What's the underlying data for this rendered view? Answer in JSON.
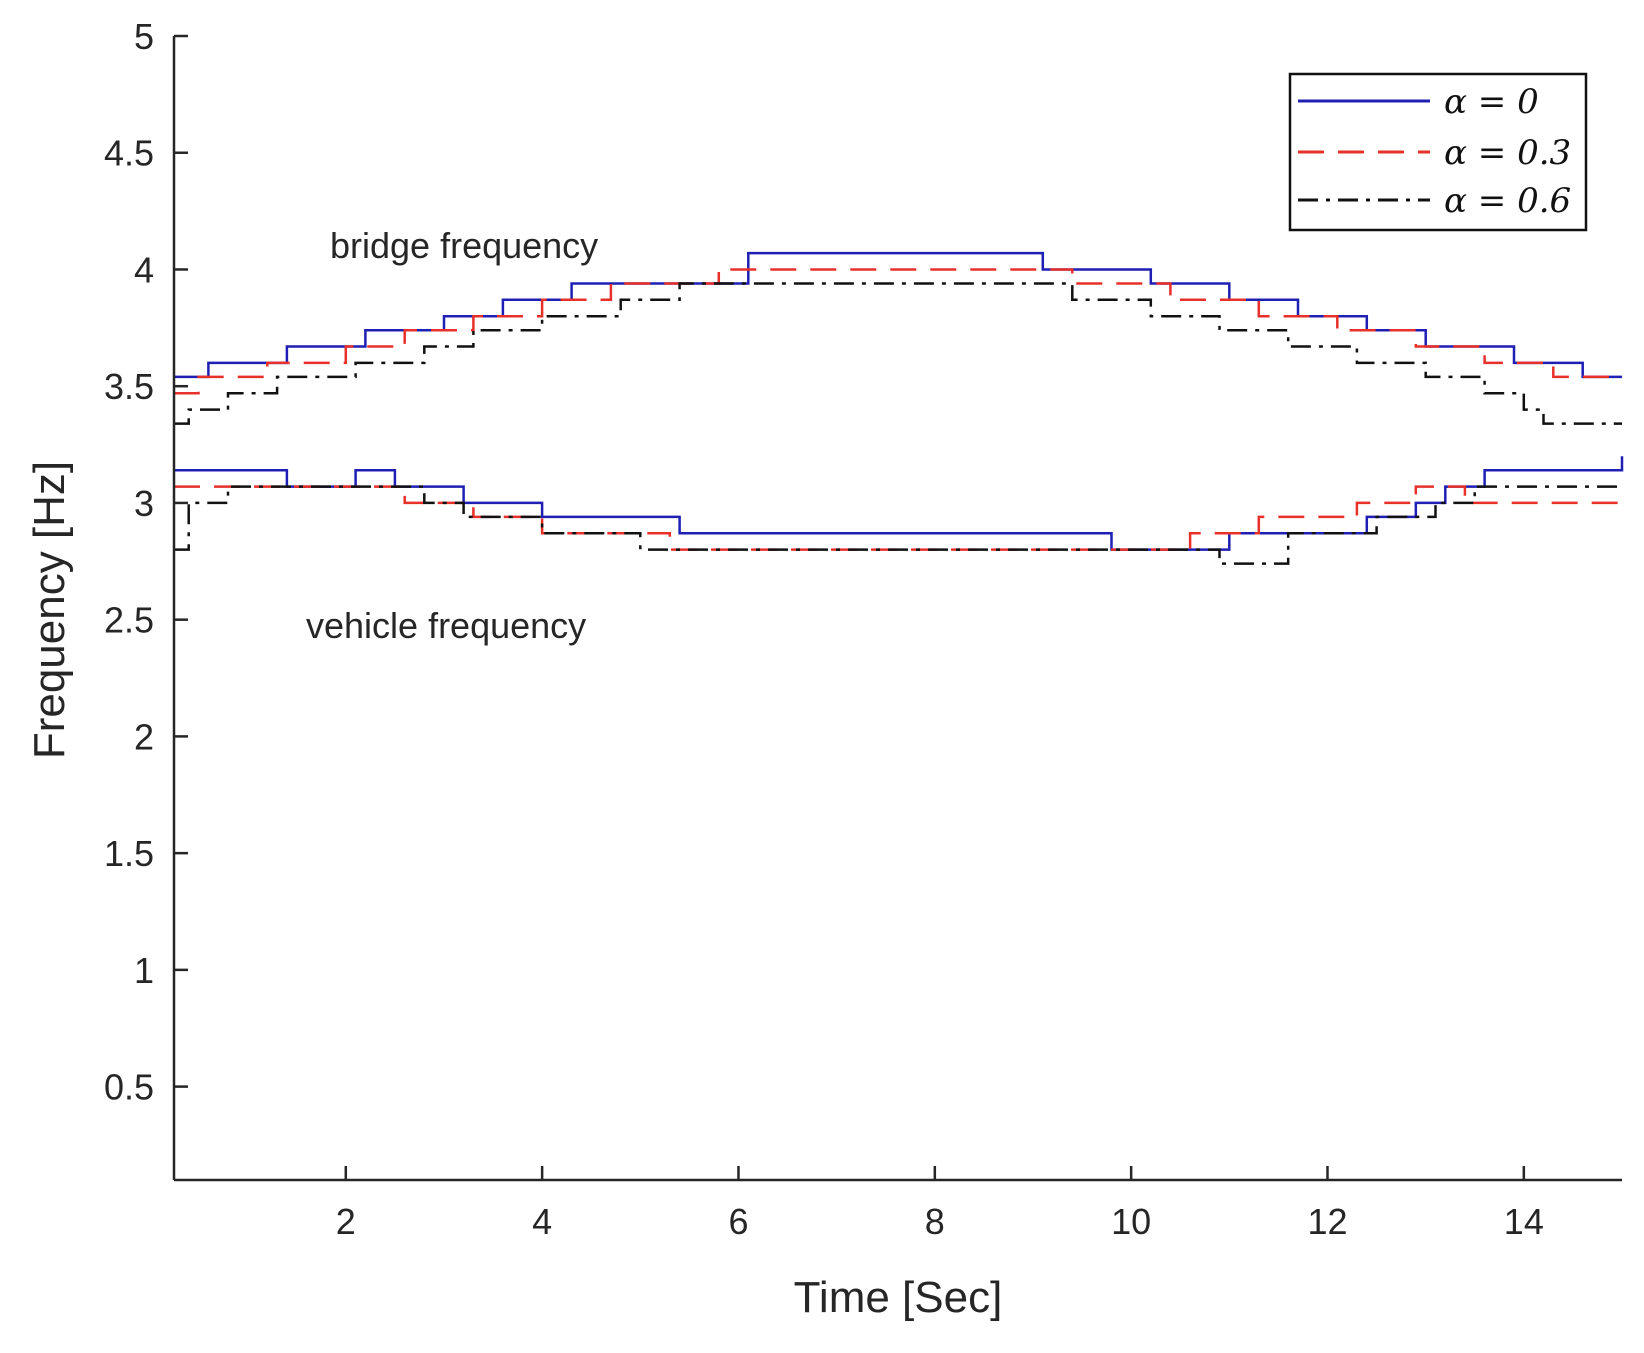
{
  "chart_data": {
    "type": "line",
    "title": "",
    "xlabel": "Time [Sec]",
    "ylabel": "Frequency [Hz]",
    "xlim": [
      0.25,
      15
    ],
    "ylim": [
      0.1,
      5
    ],
    "xticks": [
      2,
      4,
      6,
      8,
      10,
      12,
      14
    ],
    "yticks": [
      0.5,
      1,
      1.5,
      2,
      2.5,
      3,
      3.5,
      4,
      4.5,
      5
    ],
    "xtick_labels": [
      "2",
      "4",
      "6",
      "8",
      "10",
      "12",
      "14"
    ],
    "ytick_labels": [
      "0.5",
      "1",
      "1.5",
      "2",
      "2.5",
      "3",
      "3.5",
      "4",
      "4.5",
      "5"
    ],
    "grid": false,
    "legend_position": "top-right",
    "annotations": [
      {
        "text": "bridge frequency",
        "x": 3.8,
        "y": 4.1
      },
      {
        "text": "vehicle frequency",
        "x": 3.6,
        "y": 2.48
      }
    ],
    "series": [
      {
        "name": "α = 0",
        "group": "bridge",
        "color": "#1f1fb4",
        "dash": "solid",
        "x": [
          0.25,
          0.6,
          1.4,
          2.2,
          3.0,
          3.6,
          4.3,
          6.1,
          9.1,
          10.2,
          11.0,
          11.7,
          12.4,
          13.0,
          13.9,
          14.6,
          15.0
        ],
        "y": [
          3.54,
          3.6,
          3.67,
          3.74,
          3.8,
          3.87,
          3.94,
          4.07,
          4.0,
          3.94,
          3.87,
          3.8,
          3.74,
          3.67,
          3.6,
          3.54,
          3.54
        ]
      },
      {
        "name": "α = 0.3",
        "group": "bridge",
        "color": "#e8302a",
        "dash": "dashed",
        "x": [
          0.25,
          0.5,
          1.2,
          2.0,
          2.6,
          3.3,
          4.0,
          4.7,
          5.8,
          9.4,
          10.4,
          11.3,
          12.1,
          12.9,
          13.6,
          14.3,
          15.0
        ],
        "y": [
          3.47,
          3.54,
          3.6,
          3.67,
          3.74,
          3.8,
          3.87,
          3.94,
          4.0,
          3.94,
          3.87,
          3.8,
          3.74,
          3.67,
          3.6,
          3.54,
          3.54
        ]
      },
      {
        "name": "α = 0.6",
        "group": "bridge",
        "color": "#111111",
        "dash": "dashdot",
        "x": [
          0.25,
          0.4,
          0.8,
          1.3,
          2.1,
          2.8,
          3.3,
          4.0,
          4.8,
          5.4,
          9.4,
          10.2,
          10.9,
          11.6,
          12.3,
          13.0,
          13.6,
          14.0,
          14.2,
          15.0
        ],
        "y": [
          3.34,
          3.4,
          3.47,
          3.54,
          3.6,
          3.67,
          3.74,
          3.8,
          3.87,
          3.94,
          3.87,
          3.8,
          3.74,
          3.67,
          3.6,
          3.54,
          3.47,
          3.4,
          3.34,
          3.34
        ]
      },
      {
        "name": "α = 0",
        "group": "vehicle",
        "color": "#1f1fb4",
        "dash": "solid",
        "x": [
          0.25,
          1.4,
          2.1,
          2.5,
          3.2,
          4.0,
          5.4,
          9.8,
          11.0,
          12.4,
          12.9,
          13.2,
          13.6,
          15.0
        ],
        "y": [
          3.14,
          3.07,
          3.14,
          3.07,
          3.0,
          2.94,
          2.87,
          2.8,
          2.87,
          2.94,
          3.0,
          3.07,
          3.14,
          3.2
        ]
      },
      {
        "name": "α = 0.3",
        "group": "vehicle",
        "color": "#e8302a",
        "dash": "dashed",
        "x": [
          0.25,
          1.9,
          2.6,
          3.3,
          4.0,
          5.3,
          10.6,
          11.3,
          12.3,
          12.9,
          13.4,
          15.0
        ],
        "y": [
          3.07,
          3.07,
          3.0,
          2.94,
          2.87,
          2.8,
          2.87,
          2.94,
          3.0,
          3.07,
          3.0,
          3.0
        ]
      },
      {
        "name": "α = 0.6",
        "group": "vehicle",
        "color": "#111111",
        "dash": "dashdot",
        "x": [
          0.25,
          0.4,
          0.8,
          2.8,
          3.2,
          4.0,
          5.0,
          10.9,
          11.6,
          12.5,
          13.1,
          13.5,
          15.0
        ],
        "y": [
          2.8,
          3.0,
          3.07,
          3.0,
          2.94,
          2.87,
          2.8,
          2.74,
          2.87,
          2.94,
          3.0,
          3.07,
          3.07
        ]
      }
    ]
  }
}
